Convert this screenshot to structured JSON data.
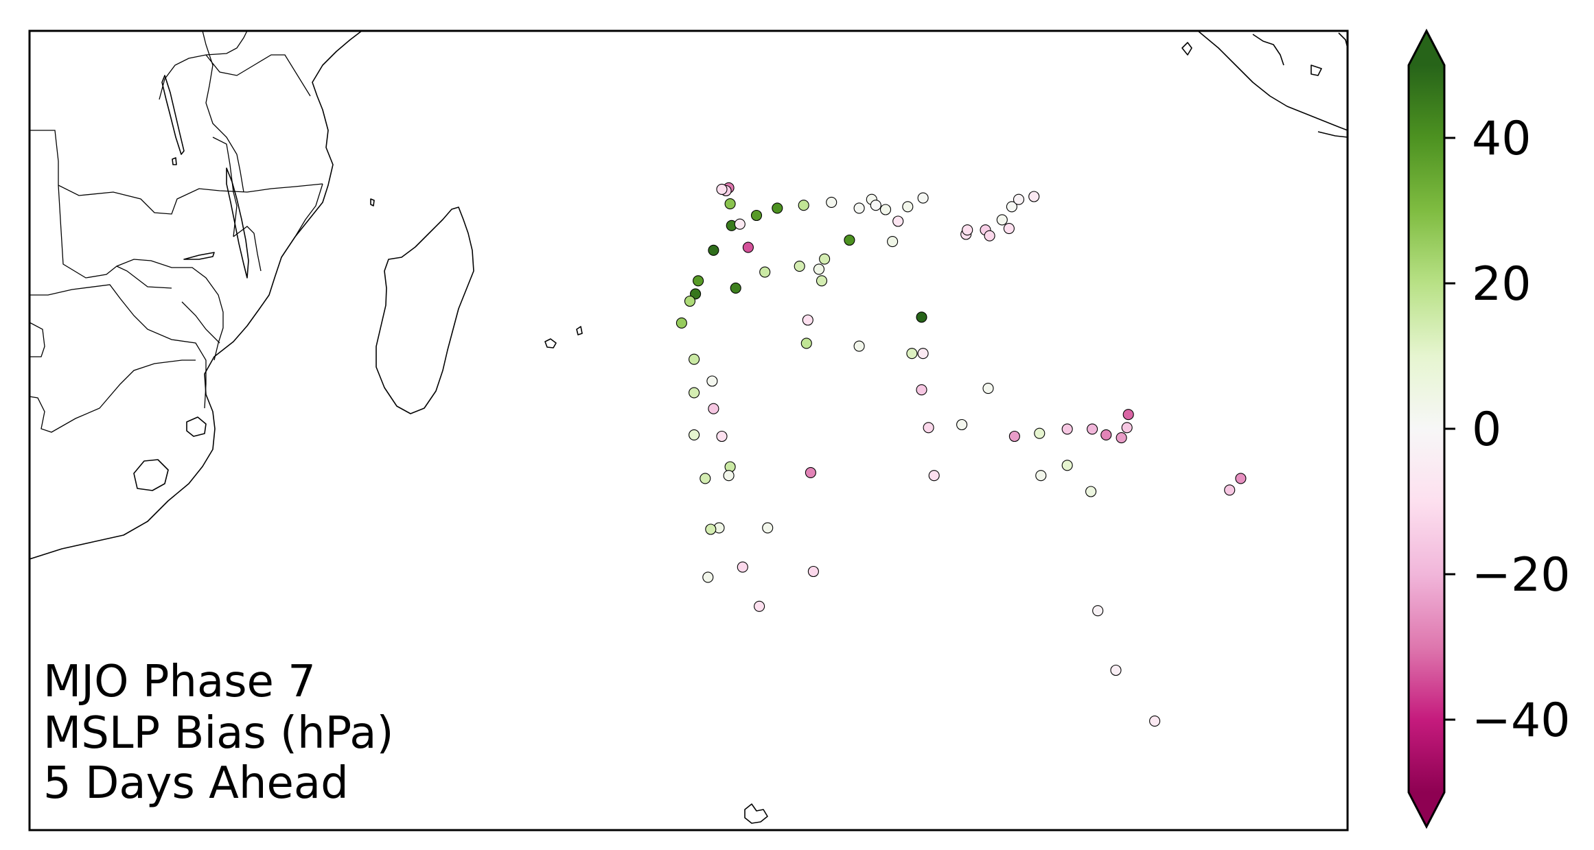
{
  "annotation": {
    "line1": "MJO Phase 7",
    "line2": "MSLP Bias (hPa)",
    "line3": "5 Days Ahead"
  },
  "colorbar": {
    "colormap": "PiYG",
    "vmin": -50,
    "vmax": 50,
    "extend": "both",
    "ticks": [
      40,
      20,
      0,
      -20,
      -40
    ],
    "tick_labels": [
      "40",
      "20",
      "0",
      "−20",
      "−40"
    ],
    "colors": [
      "#8e0152",
      "#c51b7d",
      "#de77ae",
      "#f1b6da",
      "#fde0ef",
      "#f7f7f7",
      "#e6f5d0",
      "#b8e186",
      "#7fbc41",
      "#4d9221",
      "#276419"
    ]
  },
  "map": {
    "region": "South-West Indian Ocean",
    "lon_range": [
      20,
      115
    ],
    "lat_range": [
      -45,
      10
    ]
  },
  "points": [
    {
      "lon": 70.4,
      "lat": -0.8,
      "bias": -30
    },
    {
      "lon": 70.2,
      "lat": -1.0,
      "bias": -14
    },
    {
      "lon": 69.9,
      "lat": -0.9,
      "bias": -10
    },
    {
      "lon": 70.5,
      "lat": -1.9,
      "bias": 28
    },
    {
      "lon": 70.6,
      "lat": -3.4,
      "bias": 45
    },
    {
      "lon": 71.2,
      "lat": -3.3,
      "bias": -6
    },
    {
      "lon": 72.4,
      "lat": -2.7,
      "bias": 38
    },
    {
      "lon": 73.9,
      "lat": -2.2,
      "bias": 40
    },
    {
      "lon": 75.8,
      "lat": -2.0,
      "bias": 18
    },
    {
      "lon": 77.8,
      "lat": -1.8,
      "bias": 2
    },
    {
      "lon": 79.8,
      "lat": -2.2,
      "bias": 1
    },
    {
      "lon": 80.7,
      "lat": -1.6,
      "bias": 2
    },
    {
      "lon": 81.0,
      "lat": -2.0,
      "bias": 0
    },
    {
      "lon": 81.7,
      "lat": -2.3,
      "bias": 3
    },
    {
      "lon": 82.6,
      "lat": -3.1,
      "bias": -8
    },
    {
      "lon": 83.3,
      "lat": -2.1,
      "bias": 3
    },
    {
      "lon": 84.4,
      "lat": -1.5,
      "bias": 1
    },
    {
      "lon": 87.5,
      "lat": -4.0,
      "bias": -10
    },
    {
      "lon": 87.6,
      "lat": -3.7,
      "bias": -10
    },
    {
      "lon": 88.9,
      "lat": -3.7,
      "bias": -14
    },
    {
      "lon": 89.2,
      "lat": -4.1,
      "bias": -12
    },
    {
      "lon": 90.1,
      "lat": -3.0,
      "bias": 2
    },
    {
      "lon": 90.6,
      "lat": -3.6,
      "bias": -10
    },
    {
      "lon": 90.8,
      "lat": -2.1,
      "bias": 1
    },
    {
      "lon": 91.3,
      "lat": -1.6,
      "bias": -2
    },
    {
      "lon": 92.4,
      "lat": -1.4,
      "bias": -6
    },
    {
      "lon": 82.2,
      "lat": -4.5,
      "bias": 4
    },
    {
      "lon": 69.3,
      "lat": -5.1,
      "bias": 48
    },
    {
      "lon": 71.8,
      "lat": -4.9,
      "bias": -34
    },
    {
      "lon": 76.9,
      "lat": -6.4,
      "bias": 4
    },
    {
      "lon": 79.1,
      "lat": -4.4,
      "bias": 40
    },
    {
      "lon": 77.3,
      "lat": -5.7,
      "bias": 14
    },
    {
      "lon": 75.5,
      "lat": -6.2,
      "bias": 14
    },
    {
      "lon": 77.1,
      "lat": -7.2,
      "bias": 14
    },
    {
      "lon": 68.2,
      "lat": -7.2,
      "bias": 38
    },
    {
      "lon": 68.0,
      "lat": -8.1,
      "bias": 46
    },
    {
      "lon": 70.9,
      "lat": -7.7,
      "bias": 44
    },
    {
      "lon": 73.0,
      "lat": -6.6,
      "bias": 16
    },
    {
      "lon": 67.6,
      "lat": -8.6,
      "bias": 22
    },
    {
      "lon": 67.0,
      "lat": -10.1,
      "bias": 26
    },
    {
      "lon": 76.1,
      "lat": -9.9,
      "bias": -10
    },
    {
      "lon": 76.0,
      "lat": -11.5,
      "bias": 18
    },
    {
      "lon": 79.8,
      "lat": -11.7,
      "bias": 3
    },
    {
      "lon": 84.3,
      "lat": -9.7,
      "bias": 50
    },
    {
      "lon": 83.6,
      "lat": -12.2,
      "bias": 12
    },
    {
      "lon": 84.4,
      "lat": -12.2,
      "bias": -6
    },
    {
      "lon": 67.9,
      "lat": -12.6,
      "bias": 16
    },
    {
      "lon": 69.2,
      "lat": -14.1,
      "bias": 2
    },
    {
      "lon": 67.9,
      "lat": -14.9,
      "bias": 14
    },
    {
      "lon": 69.3,
      "lat": -16.0,
      "bias": -16
    },
    {
      "lon": 67.9,
      "lat": -17.8,
      "bias": 10
    },
    {
      "lon": 69.9,
      "lat": -17.9,
      "bias": -10
    },
    {
      "lon": 84.3,
      "lat": -14.7,
      "bias": -16
    },
    {
      "lon": 89.1,
      "lat": -14.6,
      "bias": 2
    },
    {
      "lon": 84.8,
      "lat": -17.3,
      "bias": -12
    },
    {
      "lon": 87.2,
      "lat": -17.1,
      "bias": 2
    },
    {
      "lon": 91.0,
      "lat": -17.9,
      "bias": -24
    },
    {
      "lon": 92.8,
      "lat": -17.7,
      "bias": 10
    },
    {
      "lon": 94.8,
      "lat": -17.4,
      "bias": -16
    },
    {
      "lon": 96.6,
      "lat": -17.4,
      "bias": -20
    },
    {
      "lon": 97.6,
      "lat": -17.8,
      "bias": -28
    },
    {
      "lon": 98.7,
      "lat": -18.0,
      "bias": -24
    },
    {
      "lon": 99.1,
      "lat": -17.3,
      "bias": -16
    },
    {
      "lon": 99.2,
      "lat": -16.4,
      "bias": -32
    },
    {
      "lon": 70.5,
      "lat": -20.0,
      "bias": 16
    },
    {
      "lon": 70.4,
      "lat": -20.6,
      "bias": 3
    },
    {
      "lon": 68.7,
      "lat": -20.8,
      "bias": 14
    },
    {
      "lon": 76.3,
      "lat": -20.4,
      "bias": -28
    },
    {
      "lon": 85.2,
      "lat": -20.6,
      "bias": -10
    },
    {
      "lon": 92.9,
      "lat": -20.6,
      "bias": 3
    },
    {
      "lon": 94.8,
      "lat": -19.9,
      "bias": 10
    },
    {
      "lon": 96.5,
      "lat": -21.7,
      "bias": 6
    },
    {
      "lon": 106.5,
      "lat": -21.6,
      "bias": -16
    },
    {
      "lon": 107.3,
      "lat": -20.8,
      "bias": -26
    },
    {
      "lon": 69.7,
      "lat": -24.2,
      "bias": 4
    },
    {
      "lon": 69.1,
      "lat": -24.3,
      "bias": 14
    },
    {
      "lon": 73.2,
      "lat": -24.2,
      "bias": 3
    },
    {
      "lon": 71.4,
      "lat": -26.9,
      "bias": -12
    },
    {
      "lon": 76.5,
      "lat": -27.2,
      "bias": -12
    },
    {
      "lon": 68.9,
      "lat": -27.6,
      "bias": 3
    },
    {
      "lon": 72.6,
      "lat": -29.6,
      "bias": -10
    },
    {
      "lon": 97.0,
      "lat": -29.9,
      "bias": -2
    },
    {
      "lon": 98.3,
      "lat": -34.0,
      "bias": -4
    },
    {
      "lon": 101.1,
      "lat": -37.5,
      "bias": -6
    }
  ]
}
